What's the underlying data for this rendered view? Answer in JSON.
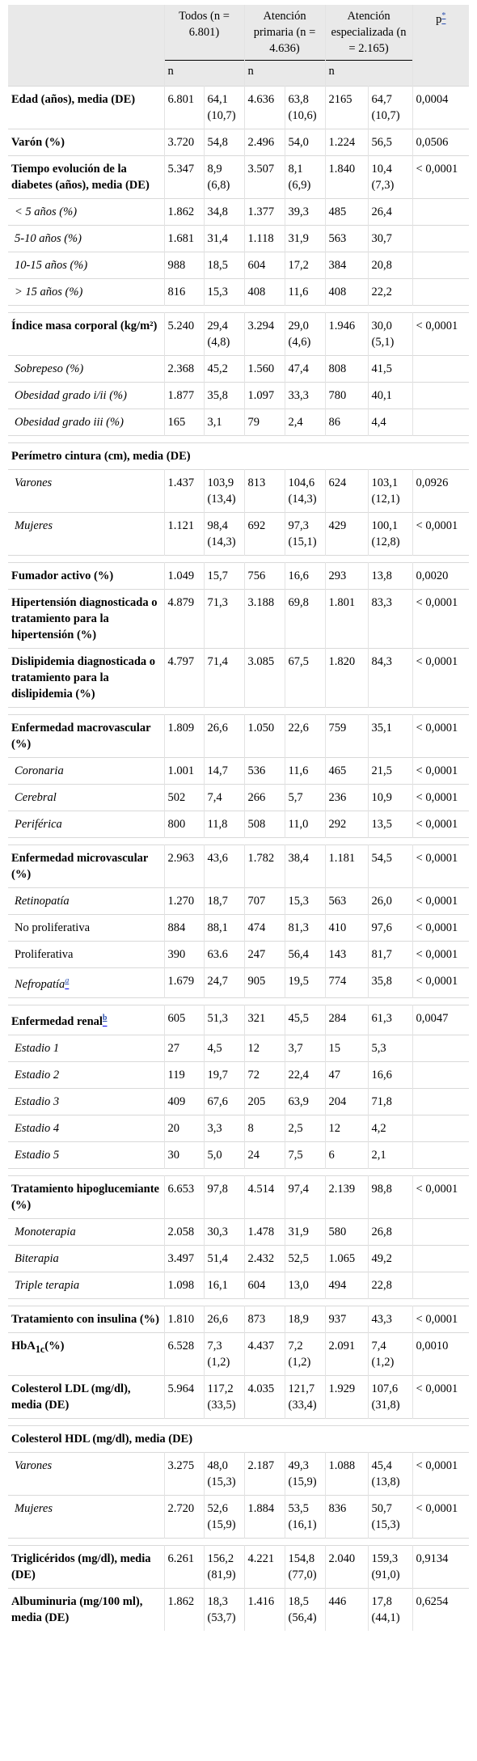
{
  "header": {
    "col0": "",
    "todos": "Todos (n = 6.801)",
    "primaria": "Atención primaria (n = 4.636)",
    "especializada": "Atención especializada (n = 2.165)",
    "p": "p",
    "p_note": "*",
    "n_label": "n"
  },
  "rows": [
    {
      "label": "Edad (años), media (DE)",
      "style": "h",
      "n1": "6.801",
      "v1": "64,1 (10,7)",
      "n2": "4.636",
      "v2": "63,8 (10,6)",
      "n3": "2165",
      "v3": "64,7 (10,7)",
      "p": "0,0004"
    },
    {
      "label": "Varón (%)",
      "style": "h",
      "n1": "3.720",
      "v1": "54,8",
      "n2": "2.496",
      "v2": "54,0",
      "n3": "1.224",
      "v3": "56,5",
      "p": "0,0506"
    },
    {
      "label": "Tiempo evolución de la diabetes (años), media (DE)",
      "style": "h",
      "n1": "5.347",
      "v1": "8,9 (6,8)",
      "n2": "3.507",
      "v2": "8,1 (6,9)",
      "n3": "1.840",
      "v3": "10,4 (7,3)",
      "p": "< 0,0001"
    },
    {
      "label": "< 5 años (%)",
      "style": "sub",
      "n1": "1.862",
      "v1": "34,8",
      "n2": "1.377",
      "v2": "39,3",
      "n3": "485",
      "v3": "26,4",
      "p": ""
    },
    {
      "label": "5-10 años (%)",
      "style": "sub",
      "n1": "1.681",
      "v1": "31,4",
      "n2": "1.118",
      "v2": "31,9",
      "n3": "563",
      "v3": "30,7",
      "p": ""
    },
    {
      "label": "10-15 años (%)",
      "style": "sub",
      "n1": "988",
      "v1": "18,5",
      "n2": "604",
      "v2": "17,2",
      "n3": "384",
      "v3": "20,8",
      "p": ""
    },
    {
      "label": "> 15 años (%)",
      "style": "sub",
      "n1": "816",
      "v1": "15,3",
      "n2": "408",
      "v2": "11,6",
      "n3": "408",
      "v3": "22,2",
      "p": ""
    },
    {
      "sep": true
    },
    {
      "label": "Índice masa corporal (kg/m²)",
      "style": "h",
      "n1": "5.240",
      "v1": "29,4 (4,8)",
      "n2": "3.294",
      "v2": "29,0 (4,6)",
      "n3": "1.946",
      "v3": "30,0 (5,1)",
      "p": "< 0,0001"
    },
    {
      "label": "Sobrepeso (%)",
      "style": "sub",
      "n1": "2.368",
      "v1": "45,2",
      "n2": "1.560",
      "v2": "47,4",
      "n3": "808",
      "v3": "41,5",
      "p": ""
    },
    {
      "label": "Obesidad grado i/ii (%)",
      "style": "sub",
      "n1": "1.877",
      "v1": "35,8",
      "n2": "1.097",
      "v2": "33,3",
      "n3": "780",
      "v3": "40,1",
      "p": ""
    },
    {
      "label": "Obesidad grado iii (%)",
      "style": "sub",
      "n1": "165",
      "v1": "3,1",
      "n2": "79",
      "v2": "2,4",
      "n3": "86",
      "v3": "4,4",
      "p": ""
    },
    {
      "sep": true
    },
    {
      "label": "Perímetro cintura (cm), media (DE)",
      "style": "h",
      "full": true
    },
    {
      "label": "Varones",
      "style": "sub",
      "n1": "1.437",
      "v1": "103,9 (13,4)",
      "n2": "813",
      "v2": "104,6 (14,3)",
      "n3": "624",
      "v3": "103,1 (12,1)",
      "p": "0,0926"
    },
    {
      "label": "Mujeres",
      "style": "sub",
      "n1": "1.121",
      "v1": "98,4 (14,3)",
      "n2": "692",
      "v2": "97,3 (15,1)",
      "n3": "429",
      "v3": "100,1 (12,8)",
      "p": "< 0,0001"
    },
    {
      "sep": true
    },
    {
      "label": "Fumador activo (%)",
      "style": "h",
      "n1": "1.049",
      "v1": "15,7",
      "n2": "756",
      "v2": "16,6",
      "n3": "293",
      "v3": "13,8",
      "p": "0,0020"
    },
    {
      "label": "Hipertensión diagnosticada o tratamiento para la hipertensión (%)",
      "style": "h",
      "n1": "4.879",
      "v1": "71,3",
      "n2": "3.188",
      "v2": "69,8",
      "n3": "1.801",
      "v3": "83,3",
      "p": "< 0,0001"
    },
    {
      "label": "Dislipidemia diagnosticada o tratamiento para la dislipidemia (%)",
      "style": "h",
      "n1": "4.797",
      "v1": "71,4",
      "n2": "3.085",
      "v2": "67,5",
      "n3": "1.820",
      "v3": "84,3",
      "p": "< 0,0001"
    },
    {
      "sep": true
    },
    {
      "label": "Enfermedad macrovascular (%)",
      "style": "h",
      "n1": "1.809",
      "v1": "26,6",
      "n2": "1.050",
      "v2": "22,6",
      "n3": "759",
      "v3": "35,1",
      "p": "< 0,0001"
    },
    {
      "label": "Coronaria",
      "style": "sub",
      "n1": "1.001",
      "v1": "14,7",
      "n2": "536",
      "v2": "11,6",
      "n3": "465",
      "v3": "21,5",
      "p": "< 0,0001"
    },
    {
      "label": "Cerebral",
      "style": "sub",
      "n1": "502",
      "v1": "7,4",
      "n2": "266",
      "v2": "5,7",
      "n3": "236",
      "v3": "10,9",
      "p": "< 0,0001"
    },
    {
      "label": "Periférica",
      "style": "sub",
      "n1": "800",
      "v1": "11,8",
      "n2": "508",
      "v2": "11,0",
      "n3": "292",
      "v3": "13,5",
      "p": "< 0,0001"
    },
    {
      "sep": true
    },
    {
      "label": "Enfermedad microvascular (%)",
      "style": "h",
      "n1": "2.963",
      "v1": "43,6",
      "n2": "1.782",
      "v2": "38,4",
      "n3": "1.181",
      "v3": "54,5",
      "p": "< 0,0001"
    },
    {
      "label": "Retinopatía",
      "style": "sub",
      "n1": "1.270",
      "v1": "18,7",
      "n2": "707",
      "v2": "15,3",
      "n3": "563",
      "v3": "26,0",
      "p": "< 0,0001"
    },
    {
      "label": "No proliferativa",
      "style": "subn",
      "n1": "884",
      "v1": "88,1",
      "n2": "474",
      "v2": "81,3",
      "n3": "410",
      "v3": "97,6",
      "p": "< 0,0001"
    },
    {
      "label": "Proliferativa",
      "style": "subn",
      "n1": "390",
      "v1": "63.6",
      "n2": "247",
      "v2": "56,4",
      "n3": "143",
      "v3": "81,7",
      "p": "< 0,0001"
    },
    {
      "label": "Nefropatía",
      "note": "a",
      "style": "sub",
      "n1": "1.679",
      "v1": "24,7",
      "n2": "905",
      "v2": "19,5",
      "n3": "774",
      "v3": "35,8",
      "p": "< 0,0001"
    },
    {
      "sep": true
    },
    {
      "label": "Enfermedad renal",
      "note": "b",
      "style": "h",
      "n1": "605",
      "v1": "51,3",
      "n2": "321",
      "v2": "45,5",
      "n3": "284",
      "v3": "61,3",
      "p": "0,0047"
    },
    {
      "label": "Estadio 1",
      "style": "sub",
      "n1": "27",
      "v1": "4,5",
      "n2": "12",
      "v2": "3,7",
      "n3": "15",
      "v3": "5,3",
      "p": ""
    },
    {
      "label": "Estadio 2",
      "style": "sub",
      "n1": "119",
      "v1": "19,7",
      "n2": "72",
      "v2": "22,4",
      "n3": "47",
      "v3": "16,6",
      "p": ""
    },
    {
      "label": "Estadio 3",
      "style": "sub",
      "n1": "409",
      "v1": "67,6",
      "n2": "205",
      "v2": "63,9",
      "n3": "204",
      "v3": "71,8",
      "p": ""
    },
    {
      "label": "Estadio 4",
      "style": "sub",
      "n1": "20",
      "v1": "3,3",
      "n2": "8",
      "v2": "2,5",
      "n3": "12",
      "v3": "4,2",
      "p": ""
    },
    {
      "label": "Estadio 5",
      "style": "sub",
      "n1": "30",
      "v1": "5,0",
      "n2": "24",
      "v2": "7,5",
      "n3": "6",
      "v3": "2,1",
      "p": ""
    },
    {
      "sep": true
    },
    {
      "label": "Tratamiento hipoglucemiante (%)",
      "style": "h",
      "n1": "6.653",
      "v1": "97,8",
      "n2": "4.514",
      "v2": "97,4",
      "n3": "2.139",
      "v3": "98,8",
      "p": "< 0,0001"
    },
    {
      "label": "Monoterapia",
      "style": "sub",
      "n1": "2.058",
      "v1": "30,3",
      "n2": "1.478",
      "v2": "31,9",
      "n3": "580",
      "v3": "26,8",
      "p": ""
    },
    {
      "label": "Biterapia",
      "style": "sub",
      "n1": "3.497",
      "v1": "51,4",
      "n2": "2.432",
      "v2": "52,5",
      "n3": "1.065",
      "v3": "49,2",
      "p": ""
    },
    {
      "label": "Triple terapia",
      "style": "sub",
      "n1": "1.098",
      "v1": "16,1",
      "n2": "604",
      "v2": "13,0",
      "n3": "494",
      "v3": "22,8",
      "p": ""
    },
    {
      "sep": true
    },
    {
      "label": "Tratamiento con insulina (%)",
      "style": "h",
      "n1": "1.810",
      "v1": "26,6",
      "n2": "873",
      "v2": "18,9",
      "n3": "937",
      "v3": "43,3",
      "p": "< 0,0001"
    },
    {
      "label": "HbA1c(%)",
      "style": "h",
      "hba": true,
      "n1": "6.528",
      "v1": "7,3 (1,2)",
      "n2": "4.437",
      "v2": "7,2 (1,2)",
      "n3": "2.091",
      "v3": "7,4 (1,2)",
      "p": "0,0010"
    },
    {
      "label": "Colesterol LDL (mg/dl), media (DE)",
      "style": "h",
      "n1": "5.964",
      "v1": "117,2 (33,5)",
      "n2": "4.035",
      "v2": "121,7 (33,4)",
      "n3": "1.929",
      "v3": "107,6 (31,8)",
      "p": "< 0,0001"
    },
    {
      "sep": true
    },
    {
      "label": "Colesterol HDL (mg/dl), media (DE)",
      "style": "h",
      "full": true
    },
    {
      "label": "Varones",
      "style": "sub",
      "n1": "3.275",
      "v1": "48,0 (15,3)",
      "n2": "2.187",
      "v2": "49,3 (15,9)",
      "n3": "1.088",
      "v3": "45,4 (13,8)",
      "p": "< 0,0001"
    },
    {
      "label": "Mujeres",
      "style": "sub",
      "n1": "2.720",
      "v1": "52,6 (15,9)",
      "n2": "1.884",
      "v2": "53,5 (16,1)",
      "n3": "836",
      "v3": "50,7 (15,3)",
      "p": "< 0,0001"
    },
    {
      "sep": true
    },
    {
      "label": "Triglicéridos (mg/dl), media (DE)",
      "style": "h",
      "n1": "6.261",
      "v1": "156,2 (81,9)",
      "n2": "4.221",
      "v2": "154,8 (77,0)",
      "n3": "2.040",
      "v3": "159,3 (91,0)",
      "p": "0,9134"
    },
    {
      "label": "Albuminuria (mg/100 ml), media (DE)",
      "style": "h",
      "n1": "1.862",
      "v1": "18,3 (53,7)",
      "n2": "1.416",
      "v2": "18,5 (56,4)",
      "n3": "446",
      "v3": "17,8 (44,1)",
      "p": "0,6254"
    }
  ]
}
